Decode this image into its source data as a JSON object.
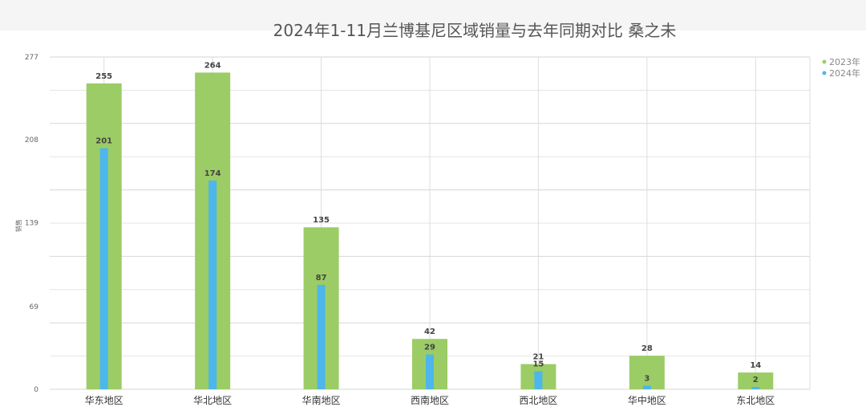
{
  "chart_data": {
    "type": "bar",
    "title": "2024年1-11月兰博基尼区域销量与去年同期对比 桑之未",
    "ylabel": "销售",
    "xlabel": "",
    "ylim": [
      0,
      277
    ],
    "yticks": [
      0,
      69,
      139,
      208,
      277
    ],
    "grid": true,
    "legend_position": "top-right",
    "categories": [
      "华东地区",
      "华北地区",
      "华南地区",
      "西南地区",
      "西北地区",
      "华中地区",
      "东北地区"
    ],
    "series": [
      {
        "name": "2023年",
        "color": "#9ccc65",
        "values": [
          255,
          264,
          135,
          42,
          21,
          28,
          14
        ]
      },
      {
        "name": "2024年",
        "color": "#4db6ec",
        "values": [
          201,
          174,
          87,
          29,
          15,
          3,
          2
        ]
      }
    ]
  }
}
